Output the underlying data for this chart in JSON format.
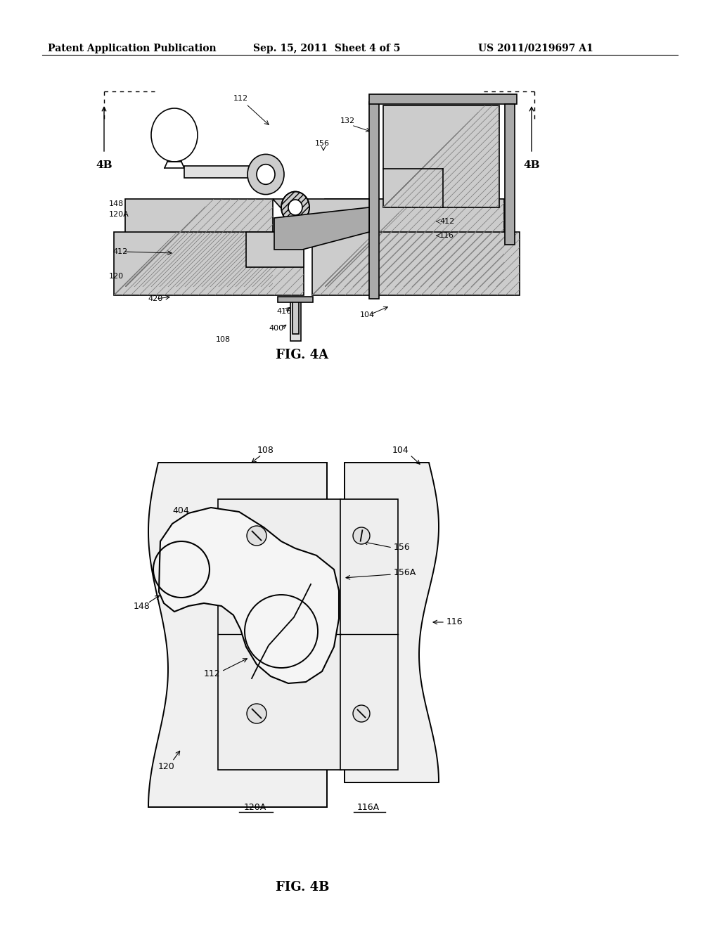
{
  "bg_color": "#ffffff",
  "header_left": "Patent Application Publication",
  "header_mid": "Sep. 15, 2011  Sheet 4 of 5",
  "header_right": "US 2011/0219697 A1",
  "fig4a_label": "FIG. 4A",
  "fig4b_label": "FIG. 4B",
  "line_color": "#000000"
}
